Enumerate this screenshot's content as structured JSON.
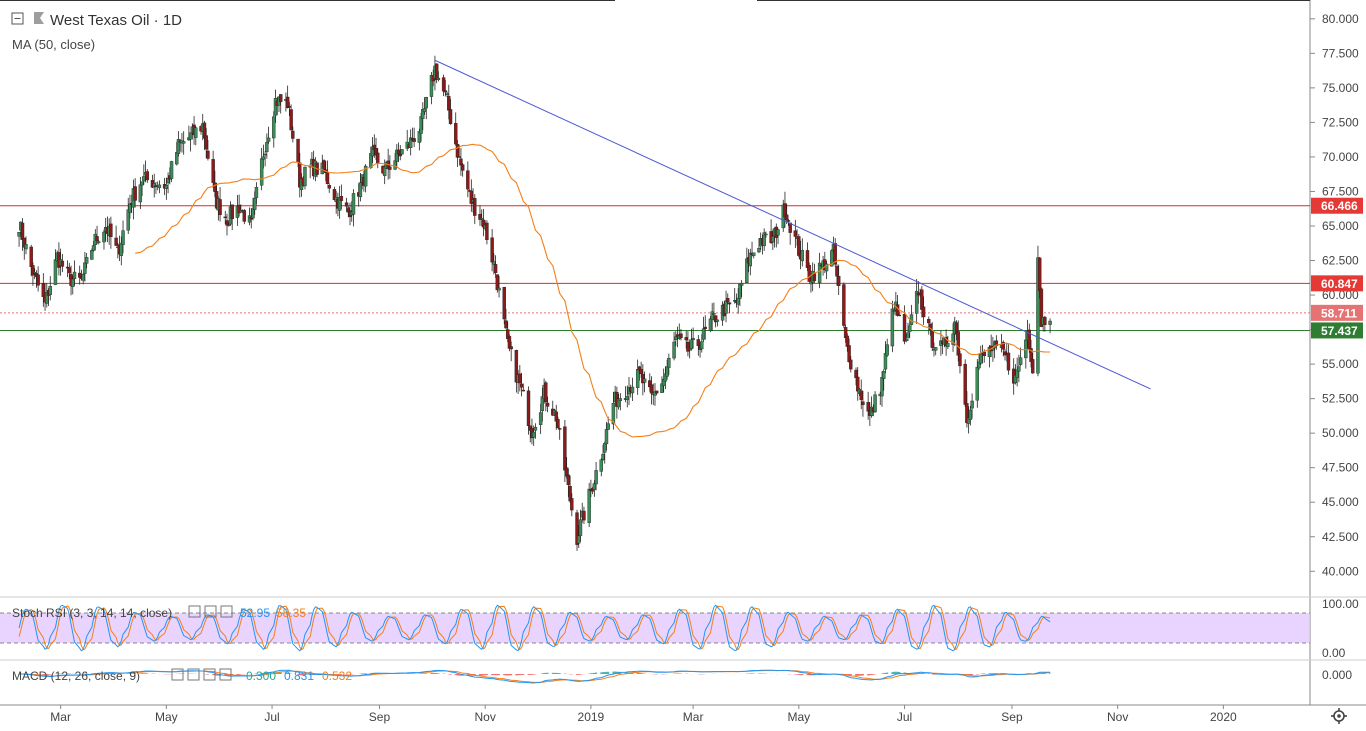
{
  "header": {
    "symbol": "West Texas Oil",
    "interval": "1D",
    "separator": " · ",
    "indicator": "MA (50, close)"
  },
  "colors": {
    "up": "#26a69a",
    "down": "#ef5350",
    "candle_up": "#3c8c5a",
    "candle_down": "#8b1a1a",
    "ma": "#f57f17",
    "trendline": "#4c5bd4",
    "resistance": "#d32f2f",
    "support": "#2e7d32",
    "stoch_k": "#2196f3",
    "stoch_d": "#f57f17",
    "stoch_band": "#e1c6ff",
    "macd": "#2196f3",
    "signal": "#f57f17"
  },
  "icons": [
    "collapse-icon",
    "symbol-flag-icon",
    "settings-gear-icon"
  ],
  "chart_data": {
    "type": "candlestick",
    "title": "West Texas Oil · 1D",
    "y_axis": {
      "min": 38.5,
      "max": 81.0,
      "ticks": [
        "80.000",
        "77.500",
        "75.000",
        "72.500",
        "70.000",
        "67.500",
        "65.000",
        "62.500",
        "60.000",
        "57.500",
        "55.000",
        "52.500",
        "50.000",
        "47.500",
        "45.000",
        "42.500",
        "40.000"
      ]
    },
    "x_axis": {
      "ticks": [
        "Mar",
        "May",
        "Jul",
        "Sep",
        "Nov",
        "2019",
        "Mar",
        "May",
        "Jul",
        "Sep",
        "Nov",
        "2020"
      ]
    },
    "price_path": [
      [
        "2018-02-05",
        65.2
      ],
      [
        "2018-02-12",
        62.0
      ],
      [
        "2018-02-20",
        59.3
      ],
      [
        "2018-02-27",
        62.8
      ],
      [
        "2018-03-06",
        61.2
      ],
      [
        "2018-03-13",
        61.0
      ],
      [
        "2018-03-20",
        63.8
      ],
      [
        "2018-03-27",
        65.0
      ],
      [
        "2018-04-03",
        63.0
      ],
      [
        "2018-04-10",
        66.7
      ],
      [
        "2018-04-17",
        68.4
      ],
      [
        "2018-04-24",
        68.2
      ],
      [
        "2018-05-01",
        67.9
      ],
      [
        "2018-05-08",
        70.8
      ],
      [
        "2018-05-15",
        71.5
      ],
      [
        "2018-05-22",
        72.3
      ],
      [
        "2018-05-29",
        67.0
      ],
      [
        "2018-06-05",
        65.5
      ],
      [
        "2018-06-12",
        66.4
      ],
      [
        "2018-06-19",
        65.0
      ],
      [
        "2018-06-26",
        70.3
      ],
      [
        "2018-07-03",
        74.1
      ],
      [
        "2018-07-10",
        73.9
      ],
      [
        "2018-07-17",
        68.3
      ],
      [
        "2018-07-24",
        69.3
      ],
      [
        "2018-07-31",
        68.9
      ],
      [
        "2018-08-07",
        67.0
      ],
      [
        "2018-08-14",
        66.0
      ],
      [
        "2018-08-21",
        67.9
      ],
      [
        "2018-08-28",
        70.1
      ],
      [
        "2018-09-04",
        69.0
      ],
      [
        "2018-09-11",
        70.0
      ],
      [
        "2018-09-18",
        70.9
      ],
      [
        "2018-09-25",
        72.3
      ],
      [
        "2018-10-03",
        76.4
      ],
      [
        "2018-10-10",
        74.0
      ],
      [
        "2018-10-17",
        69.8
      ],
      [
        "2018-10-24",
        66.8
      ],
      [
        "2018-10-31",
        65.3
      ],
      [
        "2018-11-07",
        61.7
      ],
      [
        "2018-11-14",
        56.3
      ],
      [
        "2018-11-21",
        53.5
      ],
      [
        "2018-11-28",
        50.2
      ],
      [
        "2018-12-05",
        52.9
      ],
      [
        "2018-12-12",
        51.2
      ],
      [
        "2018-12-19",
        45.9
      ],
      [
        "2018-12-24",
        42.5
      ],
      [
        "2018-12-31",
        45.4
      ],
      [
        "2019-01-07",
        48.5
      ],
      [
        "2019-01-14",
        52.2
      ],
      [
        "2019-01-22",
        53.3
      ],
      [
        "2019-01-29",
        54.2
      ],
      [
        "2019-02-05",
        52.5
      ],
      [
        "2019-02-12",
        53.9
      ],
      [
        "2019-02-19",
        56.8
      ],
      [
        "2019-02-26",
        56.0
      ],
      [
        "2019-03-05",
        56.6
      ],
      [
        "2019-03-12",
        58.2
      ],
      [
        "2019-03-19",
        59.0
      ],
      [
        "2019-03-26",
        59.4
      ],
      [
        "2019-04-02",
        62.6
      ],
      [
        "2019-04-09",
        64.0
      ],
      [
        "2019-04-16",
        64.0
      ],
      [
        "2019-04-23",
        66.3
      ],
      [
        "2019-04-30",
        63.6
      ],
      [
        "2019-05-07",
        61.4
      ],
      [
        "2019-05-14",
        62.0
      ],
      [
        "2019-05-21",
        63.1
      ],
      [
        "2019-05-28",
        56.6
      ],
      [
        "2019-06-04",
        53.4
      ],
      [
        "2019-06-11",
        51.1
      ],
      [
        "2019-06-18",
        53.8
      ],
      [
        "2019-06-25",
        59.4
      ],
      [
        "2019-07-02",
        56.3
      ],
      [
        "2019-07-09",
        60.4
      ],
      [
        "2019-07-16",
        56.9
      ],
      [
        "2019-07-23",
        56.0
      ],
      [
        "2019-07-30",
        58.1
      ],
      [
        "2019-08-06",
        51.1
      ],
      [
        "2019-08-13",
        55.2
      ],
      [
        "2019-08-20",
        56.1
      ],
      [
        "2019-08-27",
        55.8
      ],
      [
        "2019-09-03",
        53.9
      ],
      [
        "2019-09-10",
        57.4
      ],
      [
        "2019-09-13",
        54.9
      ],
      [
        "2019-09-16",
        62.9
      ],
      [
        "2019-09-18",
        58.1
      ],
      [
        "2019-09-23",
        58.7
      ]
    ],
    "trendline": {
      "from": [
        "2018-10-03",
        77.0
      ],
      "to": [
        "2019-11-20",
        53.2
      ]
    },
    "horizontal_levels": [
      {
        "value": 66.466,
        "label": "66.466",
        "role": "resistance"
      },
      {
        "value": 60.847,
        "label": "60.847",
        "role": "resistance"
      },
      {
        "value": 58.711,
        "label": "58.711",
        "role": "last-price"
      },
      {
        "value": 57.437,
        "label": "57.437",
        "role": "support"
      }
    ],
    "stoch_rsi": {
      "label": "Stoch RSI (3, 3, 14, 14, close)",
      "k": "52.95",
      "d": "58.35",
      "ticks": [
        "100.00",
        "0.00"
      ],
      "bands": [
        80,
        20
      ]
    },
    "macd": {
      "label": "MACD (12, 26, close, 9)",
      "hist": "0.300",
      "macd": "0.831",
      "signal": "0.532",
      "ticks": [
        "0.000"
      ]
    }
  }
}
